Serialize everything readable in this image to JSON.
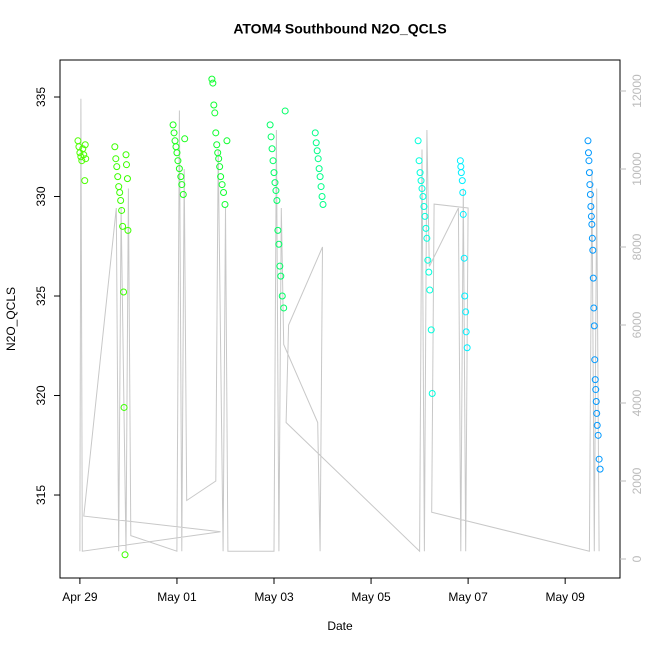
{
  "chart_data": {
    "type": "scatter",
    "title": "ATOM4 Southbound N2O_QCLS",
    "x_label": "Date",
    "y_label": "N2O_QCLS",
    "xlim": [
      28.59,
      40.13
    ],
    "xticks": [
      {
        "value": 29,
        "label": "Apr 29"
      },
      {
        "value": 31,
        "label": "May 01"
      },
      {
        "value": 33,
        "label": "May 03"
      },
      {
        "value": 35,
        "label": "May 05"
      },
      {
        "value": 37,
        "label": "May 07"
      },
      {
        "value": 39,
        "label": "May 09"
      }
    ],
    "ylim": [
      310.83,
      336.86
    ],
    "yticks": [
      315,
      320,
      325,
      330,
      335
    ],
    "y2lim": [
      -487,
      12795
    ],
    "y2ticks": [
      0,
      2000,
      4000,
      6000,
      8000,
      10000,
      12000
    ],
    "series": [
      {
        "color": "#4dff00",
        "x": [
          28.96,
          28.98,
          29.0,
          29.02,
          29.04,
          29.06,
          29.08,
          29.1,
          29.11,
          29.12
        ],
        "values": [
          332.8,
          332.5,
          332.2,
          332.0,
          331.8,
          332.4,
          332.1,
          330.8,
          332.6,
          331.9
        ]
      },
      {
        "color": "#3cff00",
        "x": [
          29.72,
          29.74,
          29.76,
          29.78,
          29.8,
          29.82,
          29.84,
          29.86,
          29.88,
          29.9,
          29.91,
          29.93,
          29.95,
          29.96,
          29.98,
          29.99
        ],
        "values": [
          332.5,
          331.9,
          331.5,
          331.0,
          330.5,
          330.2,
          329.8,
          329.3,
          328.5,
          325.2,
          319.4,
          312.0,
          332.1,
          331.6,
          330.9,
          328.3
        ]
      },
      {
        "color": "#1aff1a",
        "x": [
          30.92,
          30.94,
          30.96,
          30.98,
          31.0,
          31.02,
          31.05,
          31.08,
          31.1,
          31.13,
          31.16
        ],
        "values": [
          333.6,
          333.2,
          332.8,
          332.5,
          332.2,
          331.8,
          331.4,
          331.0,
          330.6,
          330.1,
          332.9
        ]
      },
      {
        "color": "#10ff30",
        "x": [
          31.72,
          31.74,
          31.76,
          31.78,
          31.8,
          31.82,
          31.84,
          31.86,
          31.88,
          31.9,
          31.93,
          31.96,
          31.99,
          32.03
        ],
        "values": [
          335.9,
          335.7,
          334.6,
          334.2,
          333.2,
          332.6,
          332.2,
          331.9,
          331.5,
          331.0,
          330.6,
          330.2,
          329.6,
          332.8
        ]
      },
      {
        "color": "#00ff66",
        "x": [
          32.92,
          32.94,
          32.96,
          32.98,
          33.0,
          33.02,
          33.04,
          33.06,
          33.08,
          33.1,
          33.12,
          33.14,
          33.17,
          33.2,
          33.23
        ],
        "values": [
          333.6,
          333.0,
          332.4,
          331.8,
          331.2,
          330.7,
          330.3,
          329.8,
          328.3,
          327.6,
          326.5,
          326.0,
          325.0,
          324.4,
          334.3
        ]
      },
      {
        "color": "#00ff88",
        "x": [
          33.85,
          33.87,
          33.89,
          33.91,
          33.93,
          33.95,
          33.97,
          33.99,
          34.01
        ],
        "values": [
          333.2,
          332.7,
          332.3,
          331.9,
          331.4,
          331.0,
          330.5,
          330.0,
          329.6
        ]
      },
      {
        "color": "#00ffdd",
        "x": [
          35.97,
          35.99,
          36.01,
          36.03,
          36.05,
          36.07,
          36.09,
          36.11,
          36.13,
          36.15,
          36.17,
          36.19,
          36.21,
          36.24,
          36.26
        ],
        "values": [
          332.8,
          331.8,
          331.2,
          330.8,
          330.4,
          330.0,
          329.5,
          329.0,
          328.4,
          327.9,
          326.8,
          326.2,
          325.3,
          323.3,
          320.1
        ]
      },
      {
        "color": "#00f0ff",
        "x": [
          36.84,
          36.85,
          36.86,
          36.88,
          36.89,
          36.9,
          36.92,
          36.93,
          36.95,
          36.96,
          36.98
        ],
        "values": [
          331.8,
          331.5,
          331.2,
          330.8,
          330.2,
          329.1,
          326.9,
          325.0,
          324.2,
          323.2,
          322.4
        ]
      },
      {
        "color": "#0099ff",
        "x": [
          39.47,
          39.48,
          39.49,
          39.5,
          39.51,
          39.52,
          39.53,
          39.54,
          39.55,
          39.56,
          39.57,
          39.58,
          39.59,
          39.6,
          39.61,
          39.62,
          39.63,
          39.64,
          39.65,
          39.66,
          39.68,
          39.7,
          39.72
        ],
        "values": [
          332.8,
          332.2,
          331.8,
          331.2,
          330.6,
          330.1,
          329.5,
          329.0,
          328.6,
          327.9,
          327.3,
          325.9,
          324.4,
          323.5,
          321.8,
          320.8,
          320.3,
          319.7,
          319.1,
          318.5,
          318.0,
          316.8,
          316.3
        ]
      },
      {
        "color": "#c8c8c8",
        "axis": "y2",
        "style": "line",
        "x": [
          29.0,
          29.02,
          29.05,
          31.9,
          29.08,
          29.75,
          29.8,
          29.85,
          29.95,
          30.0,
          30.05,
          31.0,
          31.05,
          31.1,
          31.15,
          31.2,
          31.8,
          31.85,
          31.95,
          32.0,
          32.05,
          33.0,
          33.05,
          33.1,
          33.15,
          33.2,
          33.9,
          33.95,
          34.0,
          33.3,
          33.25,
          36.0,
          36.05,
          36.1,
          36.15,
          36.2,
          36.8,
          36.85,
          36.9,
          36.95,
          37.0,
          36.3,
          36.25,
          39.5,
          39.55,
          39.6,
          39.65,
          39.7
        ],
        "values": [
          200,
          11800,
          200,
          700,
          1100,
          9000,
          200,
          9000,
          200,
          9500,
          600,
          200,
          11500,
          200,
          10000,
          1500,
          2000,
          10500,
          200,
          9000,
          200,
          200,
          11000,
          200,
          9000,
          5500,
          3500,
          200,
          8000,
          6000,
          3500,
          200,
          10500,
          200,
          11000,
          7500,
          9000,
          200,
          9500,
          200,
          9000,
          9100,
          1200,
          200,
          10000,
          200,
          9500,
          200
        ]
      }
    ]
  }
}
